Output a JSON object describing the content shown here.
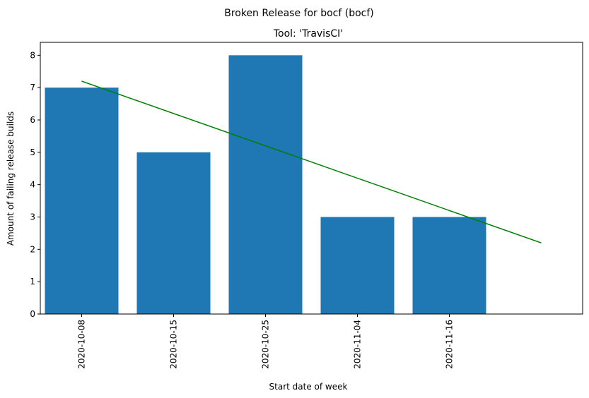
{
  "chart_data": {
    "type": "bar",
    "suptitle": "Broken Release for bocf (bocf)",
    "title": "Tool: 'TravisCI'",
    "xlabel": "Start date of week",
    "ylabel": "Amount of failing release builds",
    "categories": [
      "2020-10-08",
      "2020-10-15",
      "2020-10-25",
      "2020-11-04",
      "2020-11-16"
    ],
    "values": [
      7,
      5,
      8,
      3,
      3
    ],
    "ylim": [
      0,
      8.4
    ],
    "yticks": [
      0,
      1,
      2,
      3,
      4,
      5,
      6,
      7,
      8
    ],
    "trend_line": {
      "x": [
        0,
        5
      ],
      "y": [
        7.2,
        2.2
      ]
    },
    "grid": false,
    "colors": {
      "bar": "#1f77b4",
      "trend": "#008000"
    }
  }
}
